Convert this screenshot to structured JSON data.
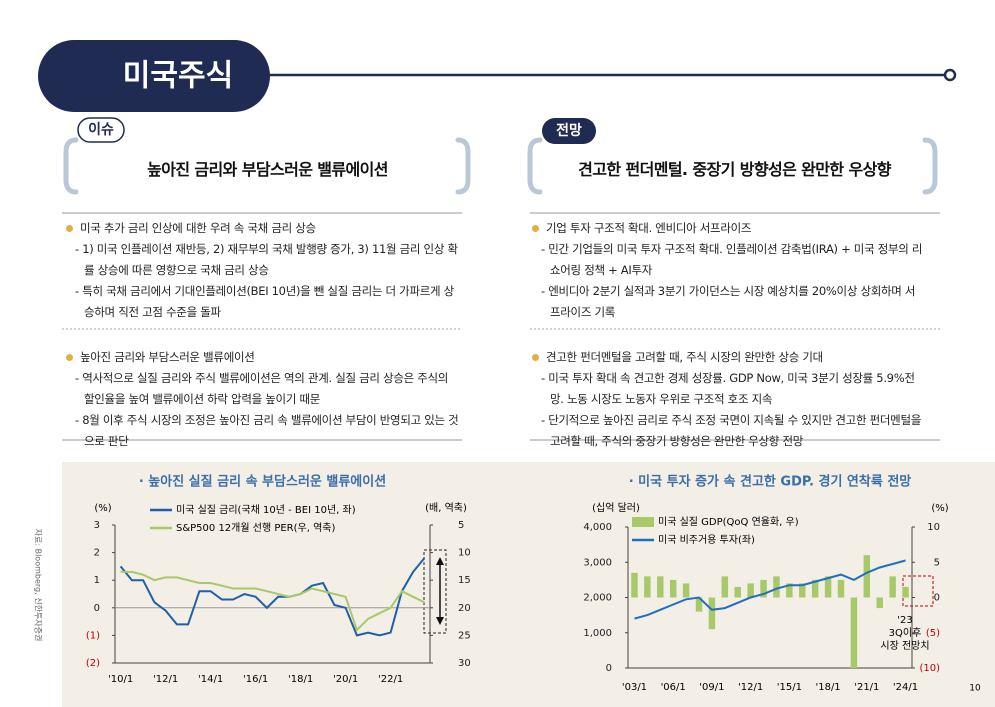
{
  "header": {
    "title": "미국주식"
  },
  "sections": [
    {
      "tag": "이슈",
      "title": "높아진 금리와 부담스러운 밸류에이션",
      "blocks": [
        {
          "bullet": "미국 추가 금리 인상에 대한 우려 속 국채 금리 상승",
          "subs": [
            "- 1) 미국 인플레이션 재반등, 2) 재무부의 국채 발행량 증가, 3) 11월 금리 인상 확률 상승에 따른 영향으로 국채 금리 상승",
            "- 특히 국채 금리에서 기대인플레이션(BEI 10년)을 뺀 실질 금리는 더 가파르게 상승하며 직전 고점 수준을 돌파"
          ]
        },
        {
          "bullet": "높아진 금리와 부담스러운 밸류에이션",
          "subs": [
            "- 역사적으로 실질 금리와 주식 밸류에이션은 역의 관계. 실질 금리 상승은 주식의 할인율을 높여 밸류에이션 하락 압력을 높이기 때문",
            "- 8월 이후 주식 시장의 조정은 높아진 금리 속 밸류에이션 부담이 반영되고 있는 것으로 판단"
          ]
        }
      ]
    },
    {
      "tag": "전망",
      "title": "견고한 펀더멘털. 중장기 방향성은 완만한 우상향",
      "blocks": [
        {
          "bullet": "기업 투자 구조적 확대. 엔비디아 서프라이즈",
          "subs": [
            "- 민간 기업들의 미국 투자 구조적 확대. 인플레이션 감축법(IRA) + 미국 정부의 리쇼어링 정책 + AI투자",
            "- 엔비디아 2분기 실적과 3분기 가이던스는 시장 예상치를 20%이상 상회하며 서프라이즈 기록"
          ]
        },
        {
          "bullet": "견고한 펀더멘털을 고려할 때, 주식 시장의 완만한 상승 기대",
          "subs": [
            "- 미국 투자 확대 속 견고한 경제 성장률. GDP Now, 미국 3분기 성장률 5.9%전망. 노동 시장도 노동자 우위로 구조적 호조 지속",
            "- 단기적으로 높아진 금리로 주식 조정 국면이 지속될 수 있지만 견고한 펀더멘털을 고려할 때, 주식의 중장기 방향성은 완만한 우상향 전망"
          ]
        }
      ]
    }
  ],
  "chart_data": [
    {
      "type": "line",
      "title": "· 높아진 실질 금리 속 부담스러운 밸류에이션",
      "ylabel": "(%)",
      "y2label": "(배, 역축)",
      "categories": [
        "'10/1",
        null,
        null,
        null,
        "'12/1",
        null,
        null,
        null,
        "'14/1",
        null,
        null,
        null,
        "'16/1",
        null,
        null,
        null,
        "'18/1",
        null,
        null,
        null,
        "'20/1",
        null,
        null,
        null,
        "'22/1",
        null,
        null,
        null
      ],
      "series": [
        {
          "name": "미국 실질 금리(국채 10년 - BEI 10년, 좌)",
          "color": "#1f5fa8",
          "values": [
            1.5,
            1.0,
            1.0,
            0.2,
            -0.1,
            -0.6,
            -0.6,
            0.6,
            0.6,
            0.3,
            0.3,
            0.5,
            0.4,
            0.0,
            0.4,
            0.4,
            0.5,
            0.8,
            0.9,
            0.1,
            0.0,
            -1.0,
            -0.9,
            -1.0,
            -0.9,
            0.6,
            1.3,
            1.8
          ]
        },
        {
          "name": "S&P500 12개월 선행 PER(우, 역축)",
          "color": "#a8c96a",
          "axis": "y2",
          "values": [
            13.5,
            13.5,
            14,
            15,
            14.5,
            14.5,
            15,
            15.5,
            15.5,
            16,
            16.5,
            16.5,
            16.5,
            17,
            17.5,
            18,
            17.5,
            16.5,
            17,
            17.5,
            18,
            24,
            22,
            21,
            20,
            17,
            18,
            19
          ]
        }
      ],
      "ylim": [
        -2,
        3
      ],
      "yticks": [
        3,
        2,
        1,
        0,
        {
          "value": -1,
          "label": "(1)"
        },
        {
          "value": -2,
          "label": "(2)"
        }
      ],
      "y2lim": [
        5,
        30
      ],
      "y2ticks": [
        5,
        10,
        15,
        20,
        25,
        30
      ],
      "y2_inverted": true,
      "negative_tick_color": "#c00000"
    },
    {
      "type": "bar_line",
      "title": "· 미국 투자 증가 속 견고한 GDP. 경기 연착륙 전망",
      "ylabel": "(십억 달러)",
      "y2label": "(%)",
      "categories": [
        "'03/1",
        null,
        null,
        "'06/1",
        null,
        null,
        "'09/1",
        null,
        null,
        "'12/1",
        null,
        null,
        "'15/1",
        null,
        null,
        "'18/1",
        null,
        null,
        "'21/1",
        null,
        null,
        "'24/1"
      ],
      "series": [
        {
          "name": "미국 실질 GDP(QoQ 연율화, 우)",
          "color": "#a8c96a",
          "type": "bar",
          "axis": "y2",
          "values": [
            3.5,
            3.0,
            3.0,
            2.5,
            2.0,
            -2.0,
            -4.5,
            3.0,
            1.5,
            2.0,
            2.5,
            3.0,
            2.0,
            2.0,
            2.5,
            3.0,
            2.5,
            -10,
            6.0,
            -1.5,
            3.0,
            1.5
          ]
        },
        {
          "name": "미국 비주거용 투자(좌)",
          "color": "#1f6fc0",
          "type": "line",
          "values": [
            1400,
            1500,
            1650,
            1800,
            1950,
            2000,
            1650,
            1700,
            1850,
            2000,
            2100,
            2250,
            2350,
            2350,
            2450,
            2550,
            2650,
            2500,
            2700,
            2850,
            2950,
            3050
          ]
        }
      ],
      "ylim": [
        0,
        4000
      ],
      "yticks": [
        0,
        {
          "value": 1000,
          "label": "1,000"
        },
        {
          "value": 2000,
          "label": "2,000"
        },
        {
          "value": 3000,
          "label": "3,000"
        },
        {
          "value": 4000,
          "label": "4,000"
        }
      ],
      "y2lim": [
        -10,
        10
      ],
      "y2ticks": [
        10,
        5,
        0,
        {
          "value": -5,
          "label": "(5)"
        },
        {
          "value": -10,
          "label": "(10)"
        }
      ],
      "annotation": [
        "'23",
        "3Q이후",
        "시장 전망치"
      ],
      "negative_tick_color": "#c00000"
    }
  ],
  "source": "자료: Bloomberg, 신한투자증권",
  "page_number": "10"
}
